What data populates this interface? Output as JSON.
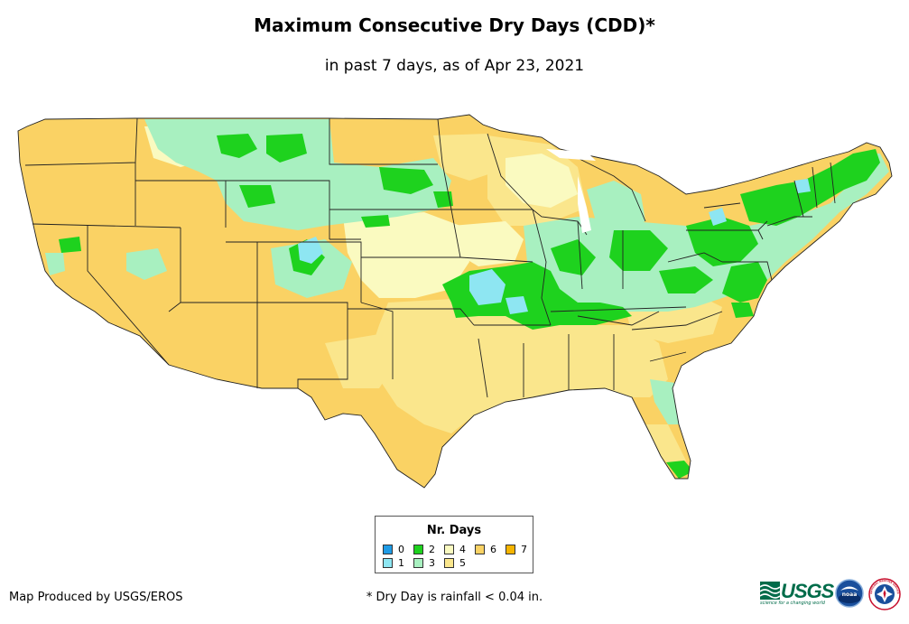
{
  "title": "Maximum Consecutive Dry Days (CDD)*",
  "subtitle": "in past 7 days, as of Apr 23, 2021",
  "legend": {
    "title": "Nr. Days",
    "items": [
      {
        "label": "0",
        "color": "#1e9be6"
      },
      {
        "label": "1",
        "color": "#8ee6f2"
      },
      {
        "label": "2",
        "color": "#1ed21e"
      },
      {
        "label": "3",
        "color": "#a8f0c0"
      },
      {
        "label": "4",
        "color": "#fafac0"
      },
      {
        "label": "5",
        "color": "#fae68c"
      },
      {
        "label": "6",
        "color": "#fad264"
      },
      {
        "label": "7",
        "color": "#f5b400"
      }
    ]
  },
  "footer": {
    "credit": "Map Produced by USGS/EROS",
    "footnote": "* Dry Day is rainfall < 0.04 in."
  },
  "logos": {
    "usgs": "USGS",
    "usgs_tagline": "science for a changing world",
    "noaa": "noaa",
    "nws": "NATIONAL WEATHER SERVICE"
  }
}
